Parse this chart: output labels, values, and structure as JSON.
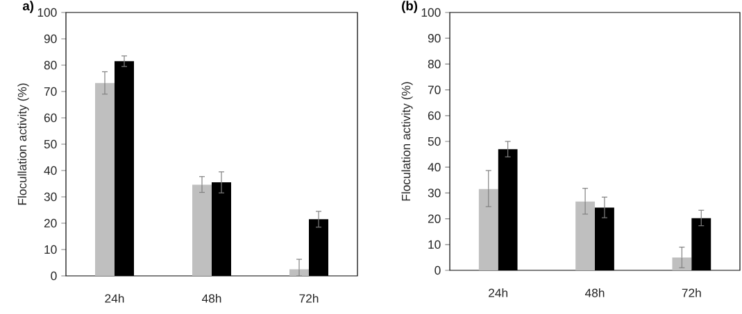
{
  "chart_data": [
    {
      "type": "bar",
      "title": "a)",
      "ylabel": "Flocullation activity (%)",
      "categories": [
        "24h",
        "48h",
        "72h"
      ],
      "ylim": [
        0,
        100
      ],
      "yticks": [
        0,
        10,
        20,
        30,
        40,
        50,
        60,
        70,
        80,
        90,
        100
      ],
      "series": [
        {
          "color": "#bfbfbf",
          "values": [
            73.2,
            34.6,
            2.5
          ],
          "errors": [
            [
              69.0,
              77.5
            ],
            [
              31.7,
              37.7
            ],
            [
              0,
              6.3
            ]
          ]
        },
        {
          "color": "#000000",
          "values": [
            81.5,
            35.5,
            21.5
          ],
          "errors": [
            [
              79.5,
              83.5
            ],
            [
              31.5,
              39.5
            ],
            [
              18.5,
              24.5
            ]
          ]
        }
      ]
    },
    {
      "type": "bar",
      "title": "(b)",
      "ylabel": "Floculation activity (%)",
      "categories": [
        "24h",
        "48h",
        "72h"
      ],
      "ylim": [
        0,
        100
      ],
      "yticks": [
        0,
        10,
        20,
        30,
        40,
        50,
        60,
        70,
        80,
        90,
        100
      ],
      "series": [
        {
          "color": "#bfbfbf",
          "values": [
            31.5,
            26.7,
            5.0
          ],
          "errors": [
            [
              24.7,
              38.7
            ],
            [
              21.8,
              31.8
            ],
            [
              1.0,
              9.0
            ]
          ]
        },
        {
          "color": "#000000",
          "values": [
            47.0,
            24.3,
            20.2
          ],
          "errors": [
            [
              44.0,
              50.0
            ],
            [
              20.4,
              28.4
            ],
            [
              17.3,
              23.3
            ]
          ]
        }
      ]
    }
  ]
}
